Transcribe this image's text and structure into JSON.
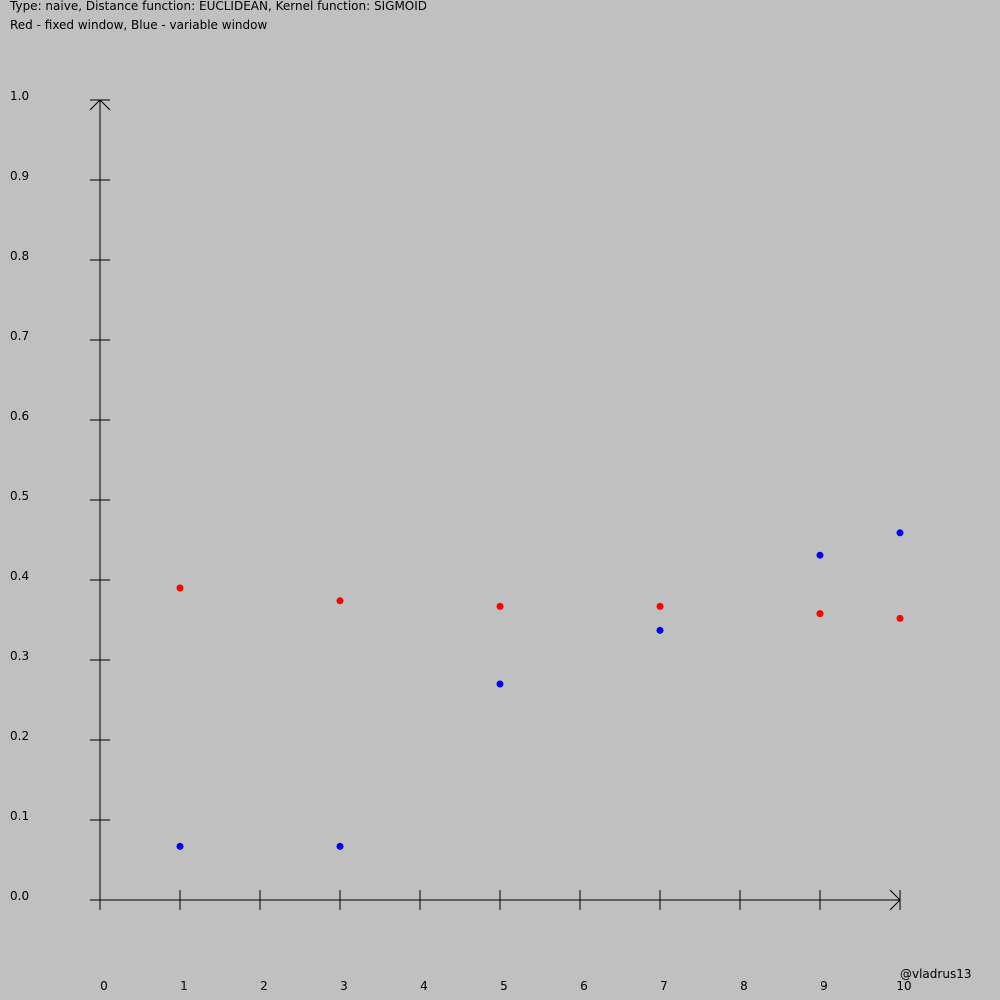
{
  "caption": {
    "line1": "Type: naive, Distance function: EUCLIDEAN, Kernel function: SIGMOID",
    "line2": "Red - fixed window, Blue - variable window"
  },
  "credit": "@vladrus13",
  "chart_data": {
    "type": "scatter",
    "xlim": [
      0,
      10
    ],
    "ylim": [
      0.0,
      1.0
    ],
    "x_ticks": [
      "0",
      "1",
      "2",
      "3",
      "4",
      "5",
      "6",
      "7",
      "8",
      "9",
      "10"
    ],
    "y_ticks": [
      "0.0",
      "0.1",
      "0.2",
      "0.3",
      "0.4",
      "0.5",
      "0.6",
      "0.7",
      "0.8",
      "0.9",
      "1.0"
    ],
    "grid": false,
    "series": [
      {
        "color": "#ff0000",
        "x": [
          1,
          3,
          5,
          7,
          9,
          10
        ],
        "y": [
          0.39,
          0.374,
          0.367,
          0.367,
          0.358,
          0.352
        ]
      },
      {
        "color": "#0000ff",
        "x": [
          1,
          3,
          5,
          7,
          9,
          10
        ],
        "y": [
          0.067,
          0.067,
          0.27,
          0.337,
          0.431,
          0.459
        ]
      }
    ]
  }
}
